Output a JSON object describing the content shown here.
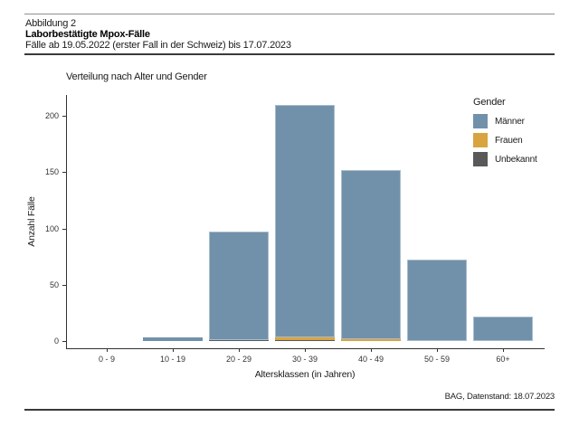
{
  "header": {
    "figure_label": "Abbildung 2",
    "title": "Laborbestätigte Mpox-Fälle",
    "subtitle": "Fälle ab 19.05.2022 (erster Fall in der Schweiz) bis 17.07.2023"
  },
  "footer": {
    "source": "BAG, Datenstand: 18.07.2023"
  },
  "chart_data": {
    "type": "bar",
    "stacked": true,
    "title": "Verteilung nach Alter und Gender",
    "xlabel": "Altersklassen (in Jahren)",
    "ylabel": "Anzahl Fälle",
    "categories": [
      "0 - 9",
      "10 - 19",
      "20 - 29",
      "30 - 39",
      "40 - 49",
      "50 - 59",
      "60+"
    ],
    "yticks": [
      0,
      50,
      100,
      150,
      200
    ],
    "ylim": [
      0,
      225
    ],
    "grid": false,
    "legend": {
      "title": "Gender",
      "position": "top-right"
    },
    "legend_order": [
      "Männer",
      "Frauen",
      "Unbekannt"
    ],
    "series": [
      {
        "name": "Unbekannt",
        "color": "#595959",
        "values": [
          0,
          0,
          1,
          1,
          0,
          0,
          0
        ]
      },
      {
        "name": "Frauen",
        "color": "#d9a43f",
        "values": [
          0,
          0,
          0,
          2,
          2,
          0,
          0
        ]
      },
      {
        "name": "Männer",
        "color": "#7191ab",
        "values": [
          0,
          3,
          96,
          207,
          150,
          72,
          22
        ]
      }
    ],
    "totals": [
      0,
      3,
      97,
      210,
      152,
      72,
      22
    ]
  },
  "colors": {
    "maenner": "#7191ab",
    "frauen": "#d9a43f",
    "unbekannt": "#595959",
    "axis": "#333333",
    "rule_dark": "#3a3a3a",
    "rule_light": "#8f8f8f"
  }
}
